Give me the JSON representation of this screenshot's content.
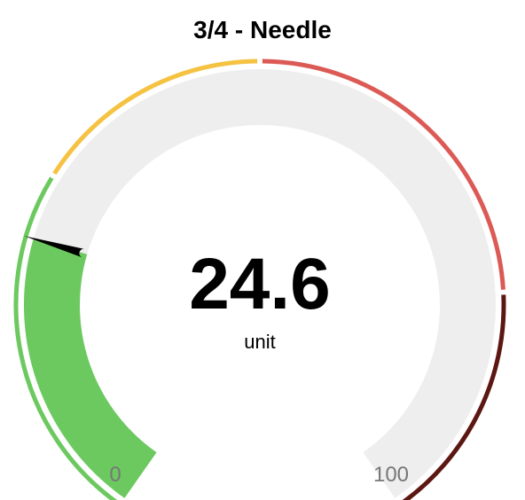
{
  "chart_data": {
    "type": "gauge",
    "title": "3/4 - Needle",
    "value": 24.6,
    "value_label": "24.6",
    "unit": "unit",
    "min": 0,
    "max": 100,
    "min_label": "0",
    "max_label": "100",
    "fill_color": "#6cc95f",
    "track_color": "#eeeeee",
    "needle_color": "#000000",
    "bands": [
      {
        "from": 0,
        "to": 30,
        "color": "#6cc95f"
      },
      {
        "from": 30,
        "to": 50,
        "color": "#f5c242"
      },
      {
        "from": 50,
        "to": 80,
        "color": "#dc5a55"
      },
      {
        "from": 80,
        "to": 100,
        "color": "#5c1712"
      }
    ]
  }
}
